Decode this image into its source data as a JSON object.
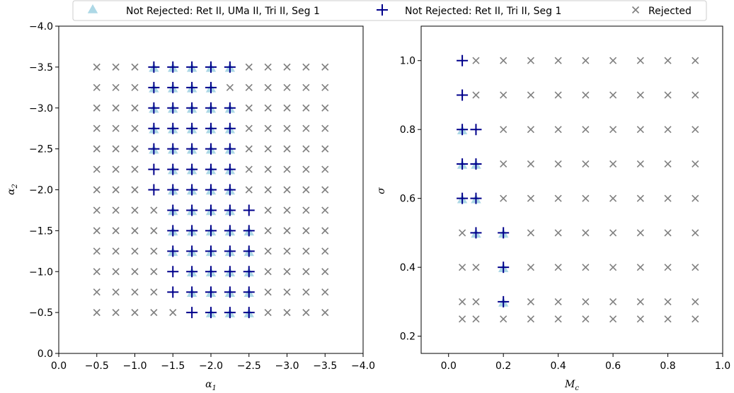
{
  "colors": {
    "not_rejected_all": "#add8e6",
    "not_rejected_subset": "#00008b",
    "rejected": "#808080"
  },
  "legend": {
    "placement": "top-center",
    "entries": [
      {
        "label": "Not Rejected: Ret II, UMa II, Tri II, Seg 1",
        "marker": "triangle",
        "color": "#add8e6"
      },
      {
        "label": "Not Rejected: Ret II, Tri II, Seg 1",
        "marker": "plus",
        "color": "#00008b"
      },
      {
        "label": "Rejected",
        "marker": "x",
        "color": "#808080"
      }
    ]
  },
  "chart_data": [
    {
      "type": "scatter",
      "xlabel": "α",
      "xlabel_sub": "1",
      "ylabel": "α",
      "ylabel_sub": "2",
      "xlim": [
        0.0,
        -4.0
      ],
      "ylim": [
        0.0,
        -4.0
      ],
      "xticks": [
        0.0,
        -0.5,
        -1.0,
        -1.5,
        -2.0,
        -2.5,
        -3.0,
        -3.5,
        -4.0
      ],
      "xtick_labels": [
        "0.0",
        "−0.5",
        "−1.0",
        "−1.5",
        "−2.0",
        "−2.5",
        "−3.0",
        "−3.5",
        "−4.0"
      ],
      "yticks": [
        0.0,
        -0.5,
        -1.0,
        -1.5,
        -2.0,
        -2.5,
        -3.0,
        -3.5,
        -4.0
      ],
      "ytick_labels": [
        "0.0",
        "−0.5",
        "−1.0",
        "−1.5",
        "−2.0",
        "−2.5",
        "−3.0",
        "−3.5",
        "−4.0"
      ],
      "grid": false,
      "x_grid": [
        -0.5,
        -0.75,
        -1.0,
        -1.25,
        -1.5,
        -1.75,
        -2.0,
        -2.25,
        -2.5,
        -2.75,
        -3.0,
        -3.25,
        -3.5
      ],
      "y_grid": [
        -0.5,
        -0.75,
        -1.0,
        -1.25,
        -1.5,
        -1.75,
        -2.0,
        -2.25,
        -2.5,
        -2.75,
        -3.0,
        -3.25,
        -3.5
      ],
      "series": [
        {
          "name": "Not Rejected: Ret II, UMa II, Tri II, Seg 1",
          "marker": "triangle",
          "points": [
            [
              -2.0,
              -0.5
            ],
            [
              -2.25,
              -0.5
            ],
            [
              -2.5,
              -0.5
            ],
            [
              -1.75,
              -0.75
            ],
            [
              -2.0,
              -0.75
            ],
            [
              -2.25,
              -0.75
            ],
            [
              -2.5,
              -0.75
            ],
            [
              -1.75,
              -1.0
            ],
            [
              -2.0,
              -1.0
            ],
            [
              -2.25,
              -1.0
            ],
            [
              -2.5,
              -1.0
            ],
            [
              -1.5,
              -1.25
            ],
            [
              -1.75,
              -1.25
            ],
            [
              -2.0,
              -1.25
            ],
            [
              -2.25,
              -1.25
            ],
            [
              -2.5,
              -1.25
            ],
            [
              -1.5,
              -1.5
            ],
            [
              -1.75,
              -1.5
            ],
            [
              -2.0,
              -1.5
            ],
            [
              -2.25,
              -1.5
            ],
            [
              -2.5,
              -1.5
            ],
            [
              -1.5,
              -1.75
            ],
            [
              -1.75,
              -1.75
            ],
            [
              -2.0,
              -1.75
            ],
            [
              -2.25,
              -1.75
            ],
            [
              -1.5,
              -2.0
            ],
            [
              -1.75,
              -2.0
            ],
            [
              -2.0,
              -2.0
            ],
            [
              -2.25,
              -2.0
            ],
            [
              -1.5,
              -2.25
            ],
            [
              -1.75,
              -2.25
            ],
            [
              -2.0,
              -2.25
            ],
            [
              -2.25,
              -2.25
            ],
            [
              -1.25,
              -2.5
            ],
            [
              -1.5,
              -2.5
            ],
            [
              -1.75,
              -2.5
            ],
            [
              -2.0,
              -2.5
            ],
            [
              -2.25,
              -2.5
            ],
            [
              -1.25,
              -2.75
            ],
            [
              -1.5,
              -2.75
            ],
            [
              -1.75,
              -2.75
            ],
            [
              -2.0,
              -2.75
            ],
            [
              -2.25,
              -2.75
            ],
            [
              -1.25,
              -3.0
            ],
            [
              -1.5,
              -3.0
            ],
            [
              -1.75,
              -3.0
            ],
            [
              -2.0,
              -3.0
            ],
            [
              -2.25,
              -3.0
            ],
            [
              -1.25,
              -3.25
            ],
            [
              -1.5,
              -3.25
            ],
            [
              -1.75,
              -3.25
            ],
            [
              -2.0,
              -3.25
            ],
            [
              -1.25,
              -3.5
            ],
            [
              -1.5,
              -3.5
            ],
            [
              -1.75,
              -3.5
            ],
            [
              -2.0,
              -3.5
            ],
            [
              -2.25,
              -3.5
            ]
          ]
        },
        {
          "name": "Not Rejected: Ret II, Tri II, Seg 1",
          "marker": "plus",
          "points": [
            [
              -1.75,
              -0.5
            ],
            [
              -2.0,
              -0.5
            ],
            [
              -2.25,
              -0.5
            ],
            [
              -2.5,
              -0.5
            ],
            [
              -1.5,
              -0.75
            ],
            [
              -1.75,
              -0.75
            ],
            [
              -2.0,
              -0.75
            ],
            [
              -2.25,
              -0.75
            ],
            [
              -2.5,
              -0.75
            ],
            [
              -1.5,
              -1.0
            ],
            [
              -1.75,
              -1.0
            ],
            [
              -2.0,
              -1.0
            ],
            [
              -2.25,
              -1.0
            ],
            [
              -2.5,
              -1.0
            ],
            [
              -1.5,
              -1.25
            ],
            [
              -1.75,
              -1.25
            ],
            [
              -2.0,
              -1.25
            ],
            [
              -2.25,
              -1.25
            ],
            [
              -2.5,
              -1.25
            ],
            [
              -1.5,
              -1.5
            ],
            [
              -1.75,
              -1.5
            ],
            [
              -2.0,
              -1.5
            ],
            [
              -2.25,
              -1.5
            ],
            [
              -2.5,
              -1.5
            ],
            [
              -1.5,
              -1.75
            ],
            [
              -1.75,
              -1.75
            ],
            [
              -2.0,
              -1.75
            ],
            [
              -2.25,
              -1.75
            ],
            [
              -2.5,
              -1.75
            ],
            [
              -1.25,
              -2.0
            ],
            [
              -1.5,
              -2.0
            ],
            [
              -1.75,
              -2.0
            ],
            [
              -2.0,
              -2.0
            ],
            [
              -2.25,
              -2.0
            ],
            [
              -1.25,
              -2.25
            ],
            [
              -1.5,
              -2.25
            ],
            [
              -1.75,
              -2.25
            ],
            [
              -2.0,
              -2.25
            ],
            [
              -2.25,
              -2.25
            ],
            [
              -1.25,
              -2.5
            ],
            [
              -1.5,
              -2.5
            ],
            [
              -1.75,
              -2.5
            ],
            [
              -2.0,
              -2.5
            ],
            [
              -2.25,
              -2.5
            ],
            [
              -1.25,
              -2.75
            ],
            [
              -1.5,
              -2.75
            ],
            [
              -1.75,
              -2.75
            ],
            [
              -2.0,
              -2.75
            ],
            [
              -2.25,
              -2.75
            ],
            [
              -1.25,
              -3.0
            ],
            [
              -1.5,
              -3.0
            ],
            [
              -1.75,
              -3.0
            ],
            [
              -2.0,
              -3.0
            ],
            [
              -2.25,
              -3.0
            ],
            [
              -1.25,
              -3.25
            ],
            [
              -1.5,
              -3.25
            ],
            [
              -1.75,
              -3.25
            ],
            [
              -2.0,
              -3.25
            ],
            [
              -1.25,
              -3.5
            ],
            [
              -1.5,
              -3.5
            ],
            [
              -1.75,
              -3.5
            ],
            [
              -2.0,
              -3.5
            ],
            [
              -2.25,
              -3.5
            ]
          ]
        }
      ]
    },
    {
      "type": "scatter",
      "xlabel": "M",
      "xlabel_sub": "c",
      "ylabel": "σ",
      "ylabel_sub": "",
      "xlim": [
        -0.1,
        1.0
      ],
      "ylim": [
        0.15,
        1.1
      ],
      "xticks": [
        0.0,
        0.2,
        0.4,
        0.6,
        0.8,
        1.0
      ],
      "xtick_labels": [
        "0.0",
        "0.2",
        "0.4",
        "0.6",
        "0.8",
        "1.0"
      ],
      "yticks": [
        0.2,
        0.4,
        0.6,
        0.8,
        1.0
      ],
      "ytick_labels": [
        "0.2",
        "0.4",
        "0.6",
        "0.8",
        "1.0"
      ],
      "grid": false,
      "x_grid": [
        0.05,
        0.1,
        0.2,
        0.3,
        0.4,
        0.5,
        0.6,
        0.7,
        0.8,
        0.9
      ],
      "y_grid": [
        0.25,
        0.3,
        0.4,
        0.5,
        0.6,
        0.7,
        0.8,
        0.9,
        1.0
      ],
      "series": [
        {
          "name": "Not Rejected: Ret II, UMa II, Tri II, Seg 1",
          "marker": "triangle",
          "points": [
            [
              0.05,
              0.6
            ],
            [
              0.1,
              0.6
            ],
            [
              0.05,
              0.7
            ],
            [
              0.1,
              0.7
            ],
            [
              0.05,
              0.8
            ],
            [
              0.1,
              0.5
            ],
            [
              0.2,
              0.5
            ],
            [
              0.2,
              0.4
            ],
            [
              0.2,
              0.3
            ]
          ]
        },
        {
          "name": "Not Rejected: Ret II, Tri II, Seg 1",
          "marker": "plus",
          "points": [
            [
              0.05,
              1.0
            ],
            [
              0.05,
              0.9
            ],
            [
              0.05,
              0.8
            ],
            [
              0.1,
              0.8
            ],
            [
              0.05,
              0.7
            ],
            [
              0.1,
              0.7
            ],
            [
              0.05,
              0.6
            ],
            [
              0.1,
              0.6
            ],
            [
              0.1,
              0.5
            ],
            [
              0.2,
              0.5
            ],
            [
              0.2,
              0.4
            ],
            [
              0.2,
              0.3
            ]
          ]
        }
      ]
    }
  ]
}
